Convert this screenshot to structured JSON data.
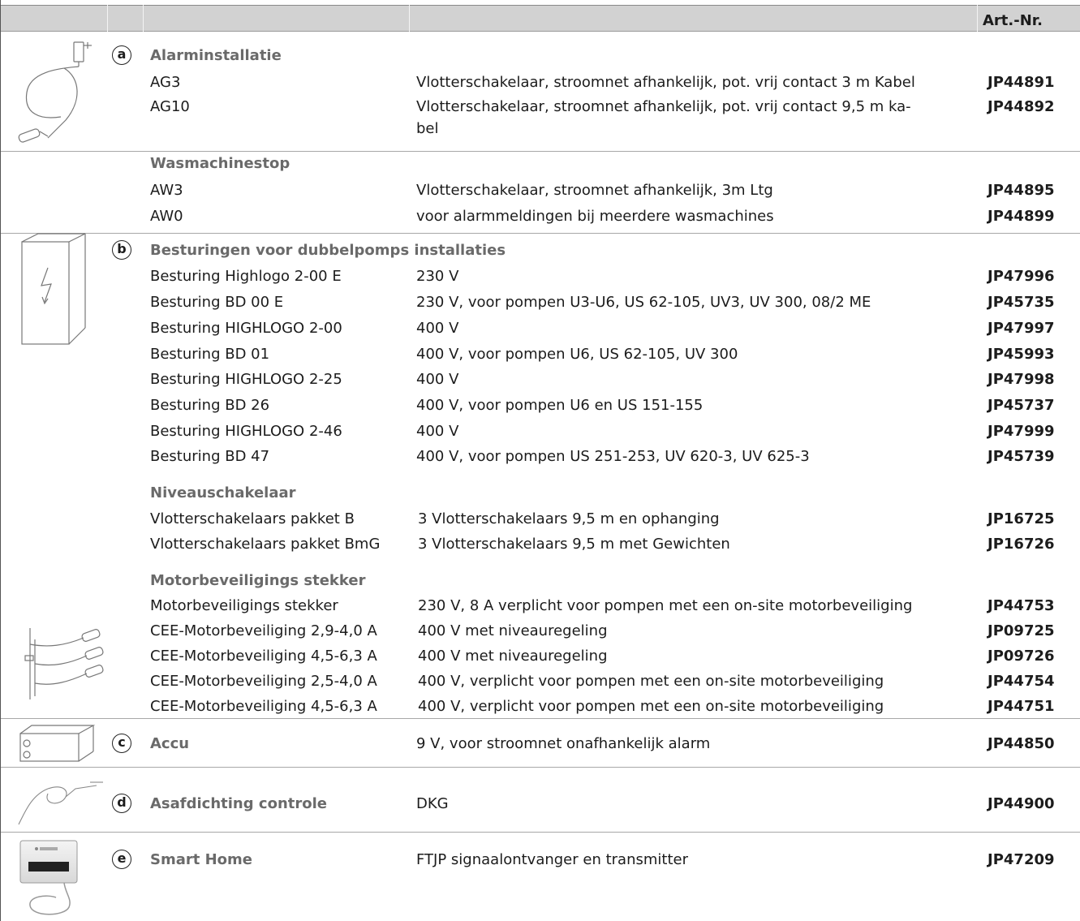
{
  "header": {
    "art_nr_label": "Art.-Nr."
  },
  "sections": {
    "a": {
      "letter": "a",
      "title": "Alarminstallatie",
      "rows": [
        {
          "name": "AG3",
          "desc": "Vlotterschakelaar, stroomnet afhankelijk, pot. vrij contact 3 m Kabel",
          "art": "JP44891"
        },
        {
          "name": "AG10",
          "desc": "Vlotterschakelaar, stroomnet afhankelijk, pot. vrij contact 9,5 m ka-",
          "desc2": "bel",
          "art": "JP44892"
        }
      ],
      "sub_title": "Wasmachinestop",
      "sub_rows": [
        {
          "name": "AW3",
          "desc": "Vlotterschakelaar, stroomnet afhankelijk, 3m Ltg",
          "art": "JP44895"
        },
        {
          "name": "AW0",
          "desc": "voor alarmmeldingen bij meerdere wasmachines",
          "art": "JP44899"
        }
      ]
    },
    "b": {
      "letter": "b",
      "title": "Besturingen voor dubbelpomps installaties",
      "rows": [
        {
          "name": "Besturing Highlogo 2-00 E",
          "desc": "230 V",
          "art": "JP47996"
        },
        {
          "name": "Besturing BD 00 E",
          "desc": "230 V, voor pompen U3-U6, US 62-105, UV3, UV 300, 08/2 ME",
          "art": "JP45735"
        },
        {
          "name": "Besturing HIGHLOGO 2-00",
          "desc": "400 V",
          "art": "JP47997"
        },
        {
          "name": "Besturing BD 01",
          "desc": "400 V, voor pompen U6, US 62-105, UV 300",
          "art": "JP45993"
        },
        {
          "name": "Besturing HIGHLOGO 2-25",
          "desc": "400 V",
          "art": "JP47998"
        },
        {
          "name": "Besturing BD 26",
          "desc": "400 V, voor pompen U6 en US 151-155",
          "art": "JP45737"
        },
        {
          "name": "Besturing HIGHLOGO 2-46",
          "desc": "400 V",
          "art": "JP47999"
        },
        {
          "name": "Besturing BD 47",
          "desc": "400 V, voor pompen US 251-253, UV 620-3, UV 625-3",
          "art": "JP45739"
        }
      ],
      "niveau_title": "Niveauschakelaar",
      "niveau_rows": [
        {
          "name": "Vlotterschakelaars pakket B",
          "desc": "3 Vlotterschakelaars 9,5 m en ophanging",
          "art": "JP16725"
        },
        {
          "name": "Vlotterschakelaars pakket BmG",
          "desc": "3 Vlotterschakelaars 9,5 m met Gewichten",
          "art": "JP16726"
        }
      ],
      "motor_title": "Motorbeveiligings stekker",
      "motor_rows": [
        {
          "name": "Motorbeveiligings stekker",
          "desc": "230 V, 8 A verplicht voor pompen met een on-site motorbeveiliging",
          "art": "JP44753"
        },
        {
          "name": "CEE-Motorbeveiliging 2,9-4,0 A",
          "desc": "400 V met niveauregeling",
          "art": "JP09725"
        },
        {
          "name": "CEE-Motorbeveiliging 4,5-6,3 A",
          "desc": "400 V met niveauregeling",
          "art": "JP09726"
        },
        {
          "name": "CEE-Motorbeveiliging 2,5-4,0 A",
          "desc": "400 V, verplicht voor pompen met een on-site motorbeveiliging",
          "art": "JP44754"
        },
        {
          "name": "CEE-Motorbeveiliging 4,5-6,3 A",
          "desc": "400 V, verplicht voor pompen met een on-site motorbeveiliging",
          "art": "JP44751"
        }
      ]
    },
    "c": {
      "letter": "c",
      "title": "Accu",
      "desc": "9 V, voor stroomnet onafhankelijk alarm",
      "art": "JP44850"
    },
    "d": {
      "letter": "d",
      "title": "Asafdichting controle",
      "desc": "DKG",
      "art": "JP44900"
    },
    "e": {
      "letter": "e",
      "title": "Smart Home",
      "desc": "FTJP signaalontvanger en transmitter",
      "art": "JP47209"
    }
  },
  "icons": {
    "a": "alarm-cable-icon",
    "b": "control-box-icon",
    "motor": "float-switch-icon",
    "c": "battery-icon",
    "d": "seal-monitor-icon",
    "e": "smart-home-receiver-icon"
  }
}
